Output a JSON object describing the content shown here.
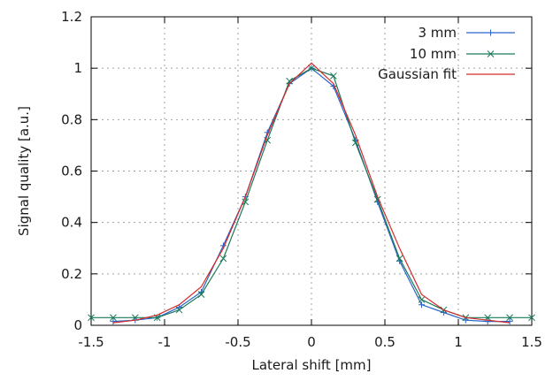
{
  "chart_data": {
    "type": "line",
    "xlabel": "Lateral shift [mm]",
    "ylabel": "Signal quality [a.u.]",
    "xlim": [
      -1.5,
      1.5
    ],
    "ylim": [
      0,
      1.2
    ],
    "xticks": [
      -1.5,
      -1,
      -0.5,
      0,
      0.5,
      1,
      1.5
    ],
    "yticks": [
      0,
      0.2,
      0.4,
      0.6,
      0.8,
      1,
      1.2
    ],
    "xtick_labels": [
      "-1.5",
      "-1",
      "-0.5",
      "0",
      "0.5",
      "1",
      "1.5"
    ],
    "ytick_labels": [
      "0",
      "0.2",
      "0.4",
      "0.6",
      "0.8",
      "1",
      "1.2"
    ],
    "grid": true,
    "legend_position": "top-right",
    "series": [
      {
        "name": "3 mm",
        "color": "#2a63c9",
        "marker": "plus",
        "x": [
          -1.35,
          -1.2,
          -1.05,
          -0.9,
          -0.75,
          -0.6,
          -0.45,
          -0.3,
          -0.15,
          0,
          0.15,
          0.3,
          0.45,
          0.6,
          0.75,
          0.9,
          1.05,
          1.2,
          1.35
        ],
        "y": [
          0.015,
          0.02,
          0.03,
          0.07,
          0.13,
          0.31,
          0.5,
          0.75,
          0.94,
          1.0,
          0.93,
          0.72,
          0.48,
          0.25,
          0.08,
          0.05,
          0.02,
          0.015,
          0.015
        ]
      },
      {
        "name": "10 mm",
        "color": "#1a7a5a",
        "marker": "cross",
        "x": [
          -1.5,
          -1.35,
          -1.2,
          -1.05,
          -0.9,
          -0.75,
          -0.6,
          -0.45,
          -0.3,
          -0.15,
          0,
          0.15,
          0.3,
          0.45,
          0.6,
          0.75,
          0.9,
          1.05,
          1.2,
          1.35,
          1.5
        ],
        "y": [
          0.03,
          0.03,
          0.03,
          0.03,
          0.06,
          0.12,
          0.26,
          0.48,
          0.72,
          0.95,
          1.0,
          0.97,
          0.71,
          0.49,
          0.26,
          0.1,
          0.06,
          0.03,
          0.03,
          0.03,
          0.03
        ]
      },
      {
        "name": "Gaussian fit",
        "color": "#d42a2a",
        "marker": "none",
        "x": [
          -1.35,
          -1.2,
          -1.05,
          -0.9,
          -0.75,
          -0.6,
          -0.45,
          -0.3,
          -0.15,
          0,
          0.15,
          0.3,
          0.45,
          0.6,
          0.75,
          0.9,
          1.05,
          1.2,
          1.35
        ],
        "y": [
          0.01,
          0.02,
          0.04,
          0.08,
          0.15,
          0.3,
          0.5,
          0.74,
          0.94,
          1.02,
          0.94,
          0.74,
          0.5,
          0.3,
          0.12,
          0.06,
          0.03,
          0.02,
          0.01
        ]
      }
    ]
  }
}
